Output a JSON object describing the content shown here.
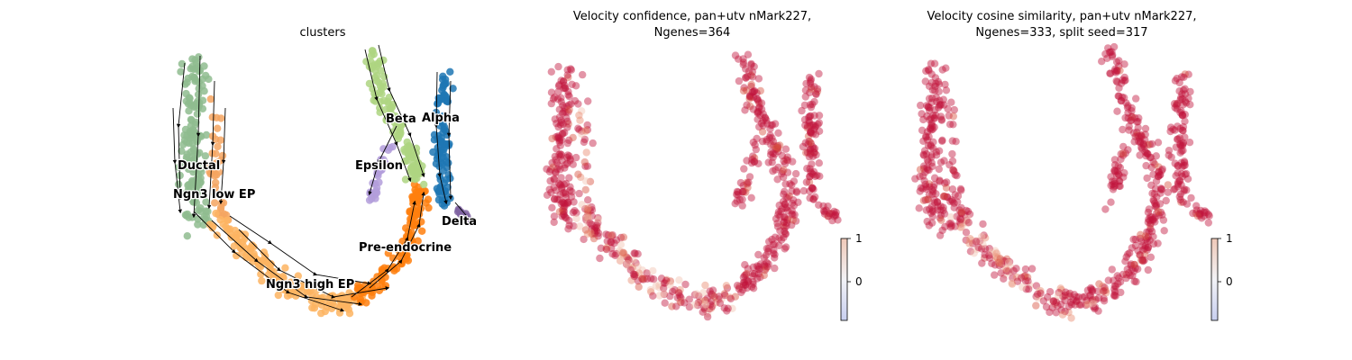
{
  "chart_data": [
    {
      "type": "scatter",
      "title": "clusters",
      "colors": {
        "Ductal": "#8fbc8f",
        "Ngn3 low EP": "#f4a460",
        "Ngn3 high EP": "#fdb462",
        "Pre-endocrine": "#ff7f0e",
        "Beta": "#aed581",
        "Alpha": "#1f77b4",
        "Delta": "#8064a2",
        "Epsilon": "#b39ddb"
      },
      "labels": [
        {
          "text": "Ductal"
        },
        {
          "text": "Ngn3 low EP"
        },
        {
          "text": "Ngn3 high EP"
        },
        {
          "text": "Pre-endocrine"
        },
        {
          "text": "Beta"
        },
        {
          "text": "Alpha"
        },
        {
          "text": "Epsilon"
        },
        {
          "text": "Delta"
        }
      ]
    },
    {
      "type": "scatter",
      "title_line1": "Velocity confidence, pan+utv nMark227,",
      "title_line2": "Ngenes=364",
      "colorbar": {
        "ticks": [
          "1",
          "0"
        ],
        "colormap": "coolwarm"
      }
    },
    {
      "type": "scatter",
      "title_line1": "Velocity cosine similarity, pan+utv nMark227,",
      "title_line2": "Ngenes=333, split seed=317",
      "colorbar": {
        "ticks": [
          "1",
          "0"
        ],
        "colormap": "coolwarm"
      }
    }
  ]
}
